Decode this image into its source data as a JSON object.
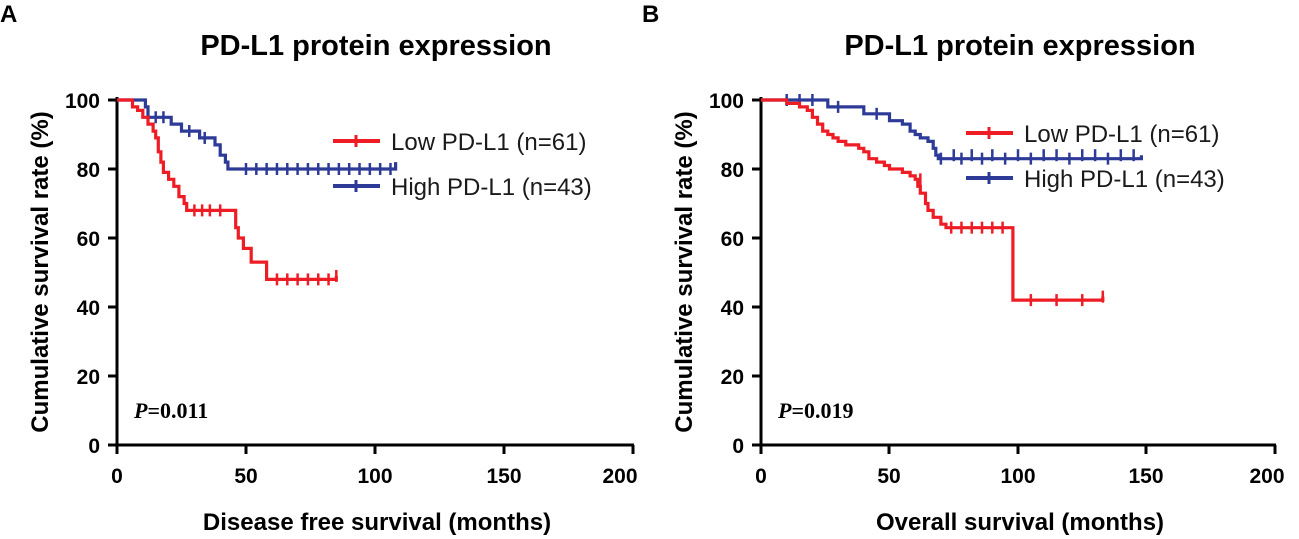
{
  "chart_data": [
    {
      "type": "line",
      "subtype": "kaplan-meier",
      "panel": "A",
      "title": "PD-L1 protein expression",
      "xlabel": "Disease free survival (months)",
      "ylabel": "Cumulative survival rate (%)",
      "xlim": [
        0,
        200
      ],
      "ylim": [
        0,
        100
      ],
      "xticks": [
        "0",
        "50",
        "100",
        "150",
        "200"
      ],
      "yticks": [
        "0",
        "20",
        "40",
        "60",
        "80",
        "100"
      ],
      "legend_position": "top-right",
      "annotation": {
        "prefix": "P",
        "text": "=0.011"
      },
      "series": [
        {
          "name": "Low PD-L1 (n=61)",
          "color": "#ee1c25",
          "steps": [
            [
              0,
              100
            ],
            [
              5,
              100
            ],
            [
              6,
              98
            ],
            [
              8,
              97
            ],
            [
              10,
              95
            ],
            [
              12,
              93
            ],
            [
              14,
              91
            ],
            [
              15,
              89
            ],
            [
              16,
              85
            ],
            [
              17,
              82
            ],
            [
              18,
              79
            ],
            [
              20,
              77
            ],
            [
              22,
              75
            ],
            [
              24,
              72
            ],
            [
              26,
              70
            ],
            [
              27,
              68
            ],
            [
              44,
              68
            ],
            [
              46,
              63
            ],
            [
              47,
              60
            ],
            [
              49,
              57
            ],
            [
              52,
              53
            ],
            [
              56,
              53
            ],
            [
              58,
              48
            ],
            [
              85,
              48
            ],
            [
              85,
              49
            ]
          ],
          "censored": [
            [
              30,
              68
            ],
            [
              33,
              68
            ],
            [
              36,
              68
            ],
            [
              40,
              68
            ],
            [
              62,
              48
            ],
            [
              66,
              48
            ],
            [
              70,
              48
            ],
            [
              74,
              48
            ],
            [
              78,
              48
            ],
            [
              82,
              48
            ],
            [
              85,
              49
            ]
          ]
        },
        {
          "name": "High PD-L1 (n=43)",
          "color": "#2e3a97",
          "steps": [
            [
              0,
              100
            ],
            [
              10,
              100
            ],
            [
              11,
              98
            ],
            [
              12,
              95
            ],
            [
              20,
              95
            ],
            [
              21,
              93
            ],
            [
              23,
              93
            ],
            [
              25,
              91
            ],
            [
              30,
              91
            ],
            [
              32,
              89
            ],
            [
              36,
              89
            ],
            [
              38,
              87
            ],
            [
              40,
              84
            ],
            [
              42,
              82
            ],
            [
              43,
              80
            ],
            [
              108,
              80
            ],
            [
              108,
              82
            ]
          ],
          "censored": [
            [
              15,
              95
            ],
            [
              18,
              95
            ],
            [
              28,
              91
            ],
            [
              34,
              89
            ],
            [
              50,
              80
            ],
            [
              54,
              80
            ],
            [
              58,
              80
            ],
            [
              62,
              80
            ],
            [
              66,
              80
            ],
            [
              70,
              80
            ],
            [
              74,
              80
            ],
            [
              78,
              80
            ],
            [
              82,
              80
            ],
            [
              86,
              80
            ],
            [
              90,
              80
            ],
            [
              94,
              80
            ],
            [
              98,
              80
            ],
            [
              102,
              80
            ],
            [
              106,
              80
            ]
          ]
        }
      ]
    },
    {
      "type": "line",
      "subtype": "kaplan-meier",
      "panel": "B",
      "title": "PD-L1 protein expression",
      "xlabel": "Overall survival (months)",
      "ylabel": "Cumulative survival rate (%)",
      "xlim": [
        0,
        200
      ],
      "ylim": [
        0,
        100
      ],
      "xticks": [
        "0",
        "50",
        "100",
        "150",
        "200"
      ],
      "yticks": [
        "0",
        "20",
        "40",
        "60",
        "80",
        "100"
      ],
      "legend_position": "top-right",
      "annotation": {
        "prefix": "P",
        "text": "=0.019"
      },
      "series": [
        {
          "name": "Low PD-L1 (n=61)",
          "color": "#ee1c25",
          "steps": [
            [
              0,
              100
            ],
            [
              8,
              100
            ],
            [
              10,
              99
            ],
            [
              15,
              98
            ],
            [
              18,
              97
            ],
            [
              20,
              95
            ],
            [
              22,
              93
            ],
            [
              24,
              91
            ],
            [
              26,
              90
            ],
            [
              28,
              89
            ],
            [
              30,
              88
            ],
            [
              33,
              87
            ],
            [
              38,
              86
            ],
            [
              40,
              85
            ],
            [
              42,
              83
            ],
            [
              45,
              82
            ],
            [
              48,
              81
            ],
            [
              50,
              80
            ],
            [
              55,
              79
            ],
            [
              58,
              78
            ],
            [
              60,
              77
            ],
            [
              61,
              75
            ],
            [
              62,
              73
            ],
            [
              64,
              70
            ],
            [
              65,
              68
            ],
            [
              67,
              66
            ],
            [
              70,
              64
            ],
            [
              72,
              63
            ],
            [
              97,
              63
            ],
            [
              98,
              42
            ],
            [
              133,
              42
            ],
            [
              133,
              43
            ]
          ],
          "censored": [
            [
              62,
              77
            ],
            [
              74,
              63
            ],
            [
              78,
              63
            ],
            [
              82,
              63
            ],
            [
              86,
              63
            ],
            [
              90,
              63
            ],
            [
              94,
              63
            ],
            [
              105,
              42
            ],
            [
              115,
              42
            ],
            [
              125,
              42
            ],
            [
              133,
              43
            ]
          ]
        },
        {
          "name": "High PD-L1 (n=43)",
          "color": "#2e3a97",
          "steps": [
            [
              0,
              100
            ],
            [
              25,
              100
            ],
            [
              26,
              98
            ],
            [
              38,
              98
            ],
            [
              40,
              96
            ],
            [
              48,
              96
            ],
            [
              50,
              94
            ],
            [
              55,
              93
            ],
            [
              58,
              91
            ],
            [
              60,
              90
            ],
            [
              62,
              89
            ],
            [
              65,
              88
            ],
            [
              67,
              86
            ],
            [
              68,
              84
            ],
            [
              69,
              83
            ],
            [
              148,
              83
            ],
            [
              148,
              84
            ]
          ],
          "censored": [
            [
              10,
              100
            ],
            [
              15,
              100
            ],
            [
              20,
              100
            ],
            [
              30,
              98
            ],
            [
              45,
              96
            ],
            [
              70,
              83
            ],
            [
              75,
              84
            ],
            [
              78,
              83
            ],
            [
              82,
              84
            ],
            [
              86,
              83
            ],
            [
              90,
              84
            ],
            [
              95,
              83
            ],
            [
              100,
              84
            ],
            [
              105,
              83
            ],
            [
              110,
              84
            ],
            [
              115,
              84
            ],
            [
              120,
              83
            ],
            [
              125,
              84
            ],
            [
              130,
              84
            ],
            [
              135,
              83
            ],
            [
              140,
              84
            ],
            [
              145,
              84
            ]
          ]
        }
      ]
    }
  ]
}
